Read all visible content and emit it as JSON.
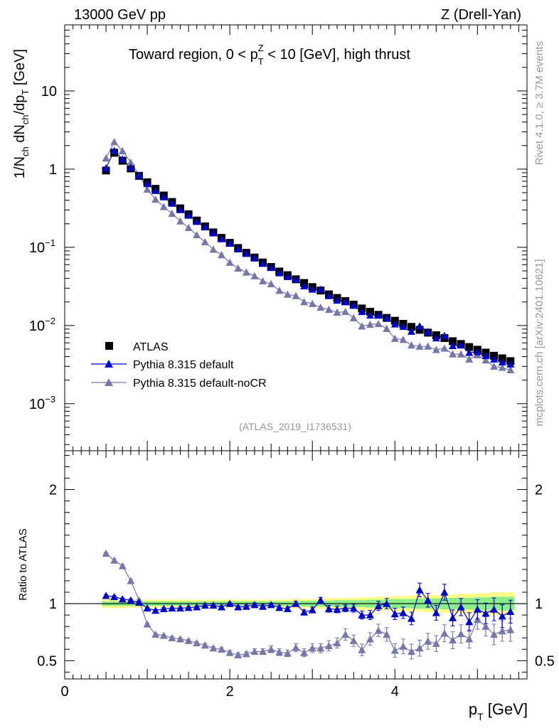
{
  "header": {
    "left": "13000 GeV pp",
    "right": "Z (Drell-Yan)"
  },
  "side": {
    "rivet": "Rivet 4.1.0, ≥ 3.7M events",
    "mcplots": "mcplots.cern.ch [arXiv:2401.10621]"
  },
  "chart_data": [
    {
      "type": "scatter",
      "panel": "main",
      "title": "Toward region, 0 < p_T^Z < 10 [GeV], high thrust",
      "title_parts": {
        "pre": "Toward region, 0 < p",
        "sub": "T",
        "sup": "Z",
        "post": " < 10 [GeV], high thrust"
      },
      "ylabel_parts": {
        "a": "1/N",
        "a_sub": "ch",
        "b": " dN",
        "b_sub": "ch",
        "c": "/dp",
        "c_sub": "T",
        "d": " [GeV]"
      },
      "yscale": "log",
      "xlim": [
        0,
        5.6
      ],
      "ylim": [
        0.00025,
        70
      ],
      "yticks": [
        {
          "v": 10,
          "base": "10",
          "exp": ""
        },
        {
          "v": 1,
          "base": "1",
          "exp": ""
        },
        {
          "v": 0.1,
          "base": "10",
          "exp": "−1"
        },
        {
          "v": 0.01,
          "base": "10",
          "exp": "−2"
        },
        {
          "v": 0.001,
          "base": "10",
          "exp": "−3"
        }
      ],
      "watermark": "(ATLAS_2019_I1736531)",
      "legend_position": "lower-left",
      "x": [
        0.5,
        0.6,
        0.7,
        0.8,
        0.9,
        1.0,
        1.1,
        1.2,
        1.3,
        1.4,
        1.5,
        1.6,
        1.7,
        1.8,
        1.9,
        2.0,
        2.1,
        2.2,
        2.3,
        2.4,
        2.5,
        2.6,
        2.7,
        2.8,
        2.9,
        3.0,
        3.1,
        3.2,
        3.3,
        3.4,
        3.5,
        3.6,
        3.7,
        3.8,
        3.9,
        4.0,
        4.1,
        4.2,
        4.3,
        4.4,
        4.5,
        4.6,
        4.7,
        4.8,
        4.9,
        5.0,
        5.1,
        5.2,
        5.3,
        5.4
      ],
      "series": [
        {
          "name": "ATLAS",
          "color": "#000000",
          "marker": "square",
          "values": [
            0.96,
            1.62,
            1.28,
            1.02,
            0.82,
            0.68,
            0.56,
            0.46,
            0.38,
            0.315,
            0.265,
            0.22,
            0.185,
            0.155,
            0.132,
            0.114,
            0.098,
            0.085,
            0.074,
            0.064,
            0.056,
            0.049,
            0.044,
            0.039,
            0.035,
            0.031,
            0.028,
            0.025,
            0.0225,
            0.0205,
            0.0185,
            0.0165,
            0.015,
            0.0137,
            0.0125,
            0.0115,
            0.0105,
            0.0096,
            0.0088,
            0.0081,
            0.0075,
            0.0069,
            0.0063,
            0.0058,
            0.0053,
            0.0049,
            0.0045,
            0.0041,
            0.0038,
            0.0035
          ]
        },
        {
          "name": "Pythia 8.315 default",
          "color": "#0000cc",
          "marker": "triangle",
          "values": [
            1.03,
            1.72,
            1.34,
            1.05,
            0.83,
            0.65,
            0.53,
            0.44,
            0.365,
            0.302,
            0.256,
            0.213,
            0.182,
            0.153,
            0.128,
            0.113,
            0.095,
            0.083,
            0.073,
            0.062,
            0.055,
            0.047,
            0.042,
            0.039,
            0.032,
            0.029,
            0.029,
            0.024,
            0.021,
            0.02,
            0.018,
            0.015,
            0.0135,
            0.0135,
            0.0125,
            0.0104,
            0.0097,
            0.0084,
            0.0098,
            0.0083,
            0.0069,
            0.0074,
            0.0055,
            0.0056,
            0.0045,
            0.0046,
            0.0041,
            0.0037,
            0.0034,
            0.0032
          ]
        },
        {
          "name": "Pythia 8.315 default-noCR",
          "color": "#7777aa",
          "marker": "triangle",
          "values": [
            1.38,
            2.23,
            1.71,
            1.22,
            0.84,
            0.55,
            0.41,
            0.33,
            0.27,
            0.216,
            0.178,
            0.144,
            0.117,
            0.094,
            0.08,
            0.064,
            0.054,
            0.048,
            0.043,
            0.037,
            0.034,
            0.028,
            0.025,
            0.024,
            0.02,
            0.019,
            0.017,
            0.016,
            0.0147,
            0.015,
            0.0125,
            0.0098,
            0.0103,
            0.0105,
            0.0091,
            0.0068,
            0.0066,
            0.0056,
            0.0054,
            0.0054,
            0.0049,
            0.0051,
            0.0043,
            0.0043,
            0.0037,
            0.0042,
            0.0036,
            0.003,
            0.0029,
            0.0027
          ]
        }
      ]
    },
    {
      "type": "line",
      "panel": "ratio",
      "ylabel": "Ratio to ATLAS",
      "xlabel": "p_T [GeV]",
      "xlabel_parts": {
        "pre": "p",
        "sub": "T",
        "post": " [GeV]"
      },
      "xlim": [
        0,
        5.6
      ],
      "ylim": [
        0.34,
        2.34
      ],
      "yticks": [
        "0.5",
        "1",
        "2"
      ],
      "xticks": [
        "0",
        "2",
        "4"
      ],
      "x": [
        0.5,
        0.6,
        0.7,
        0.8,
        0.9,
        1.0,
        1.1,
        1.2,
        1.3,
        1.4,
        1.5,
        1.6,
        1.7,
        1.8,
        1.9,
        2.0,
        2.1,
        2.2,
        2.3,
        2.4,
        2.5,
        2.6,
        2.7,
        2.8,
        2.9,
        3.0,
        3.1,
        3.2,
        3.3,
        3.4,
        3.5,
        3.6,
        3.7,
        3.8,
        3.9,
        4.0,
        4.1,
        4.2,
        4.3,
        4.4,
        4.5,
        4.6,
        4.7,
        4.8,
        4.9,
        5.0,
        5.1,
        5.2,
        5.3,
        5.4
      ],
      "band_inner_halfwidth": [
        0.02,
        0.02,
        0.02,
        0.02,
        0.02,
        0.02,
        0.02,
        0.02,
        0.02,
        0.02,
        0.02,
        0.02,
        0.02,
        0.02,
        0.02,
        0.02,
        0.02,
        0.02,
        0.02,
        0.02,
        0.02,
        0.02,
        0.02,
        0.02,
        0.025,
        0.025,
        0.025,
        0.025,
        0.03,
        0.03,
        0.03,
        0.03,
        0.035,
        0.035,
        0.035,
        0.04,
        0.04,
        0.04,
        0.045,
        0.045,
        0.045,
        0.05,
        0.05,
        0.05,
        0.05,
        0.055,
        0.055,
        0.06,
        0.06,
        0.06
      ],
      "band_outer_halfwidth": [
        0.04,
        0.04,
        0.04,
        0.035,
        0.035,
        0.035,
        0.035,
        0.035,
        0.035,
        0.035,
        0.035,
        0.035,
        0.035,
        0.035,
        0.035,
        0.035,
        0.035,
        0.035,
        0.035,
        0.035,
        0.035,
        0.035,
        0.035,
        0.04,
        0.04,
        0.04,
        0.045,
        0.045,
        0.05,
        0.05,
        0.05,
        0.055,
        0.055,
        0.06,
        0.06,
        0.065,
        0.065,
        0.07,
        0.07,
        0.075,
        0.075,
        0.08,
        0.08,
        0.085,
        0.085,
        0.09,
        0.09,
        0.1,
        0.1,
        0.1
      ],
      "series": [
        {
          "name": "Pythia 8.315 default",
          "color": "#0000cc",
          "values": [
            1.07,
            1.06,
            1.04,
            1.03,
            1.01,
            0.96,
            0.94,
            0.955,
            0.96,
            0.96,
            0.965,
            0.97,
            0.985,
            0.985,
            0.97,
            1.0,
            0.97,
            0.975,
            0.99,
            0.975,
            0.99,
            0.965,
            0.955,
            1.0,
            0.925,
            0.945,
            1.03,
            0.955,
            0.95,
            0.96,
            0.96,
            0.9,
            0.9,
            0.98,
            1.0,
            0.91,
            0.92,
            0.87,
            1.12,
            1.03,
            0.92,
            1.1,
            0.875,
            0.97,
            0.84,
            0.95,
            0.915,
            0.95,
            0.89,
            0.93
          ],
          "errors": [
            0.01,
            0.01,
            0.01,
            0.01,
            0.01,
            0.01,
            0.01,
            0.01,
            0.01,
            0.01,
            0.01,
            0.01,
            0.01,
            0.01,
            0.01,
            0.012,
            0.012,
            0.012,
            0.015,
            0.015,
            0.015,
            0.018,
            0.018,
            0.02,
            0.02,
            0.025,
            0.025,
            0.03,
            0.03,
            0.03,
            0.035,
            0.035,
            0.04,
            0.04,
            0.045,
            0.05,
            0.05,
            0.055,
            0.06,
            0.06,
            0.065,
            0.07,
            0.07,
            0.075,
            0.08,
            0.085,
            0.09,
            0.1,
            0.1,
            0.1
          ]
        },
        {
          "name": "Pythia 8.315 default-noCR",
          "color": "#7777aa",
          "values": [
            1.44,
            1.38,
            1.33,
            1.2,
            1.03,
            0.82,
            0.73,
            0.72,
            0.7,
            0.69,
            0.675,
            0.655,
            0.635,
            0.61,
            0.6,
            0.57,
            0.55,
            0.56,
            0.58,
            0.58,
            0.6,
            0.575,
            0.565,
            0.615,
            0.57,
            0.61,
            0.61,
            0.63,
            0.655,
            0.73,
            0.675,
            0.595,
            0.69,
            0.765,
            0.73,
            0.59,
            0.625,
            0.58,
            0.61,
            0.67,
            0.65,
            0.74,
            0.68,
            0.735,
            0.69,
            0.86,
            0.8,
            0.73,
            0.76,
            0.77
          ],
          "errors": [
            0.01,
            0.01,
            0.01,
            0.01,
            0.01,
            0.01,
            0.01,
            0.01,
            0.01,
            0.012,
            0.012,
            0.012,
            0.015,
            0.015,
            0.015,
            0.02,
            0.02,
            0.02,
            0.025,
            0.025,
            0.03,
            0.03,
            0.03,
            0.035,
            0.035,
            0.04,
            0.04,
            0.045,
            0.045,
            0.05,
            0.05,
            0.05,
            0.055,
            0.055,
            0.06,
            0.06,
            0.065,
            0.065,
            0.07,
            0.07,
            0.07,
            0.075,
            0.075,
            0.08,
            0.08,
            0.085,
            0.085,
            0.09,
            0.09,
            0.1
          ]
        }
      ]
    }
  ]
}
